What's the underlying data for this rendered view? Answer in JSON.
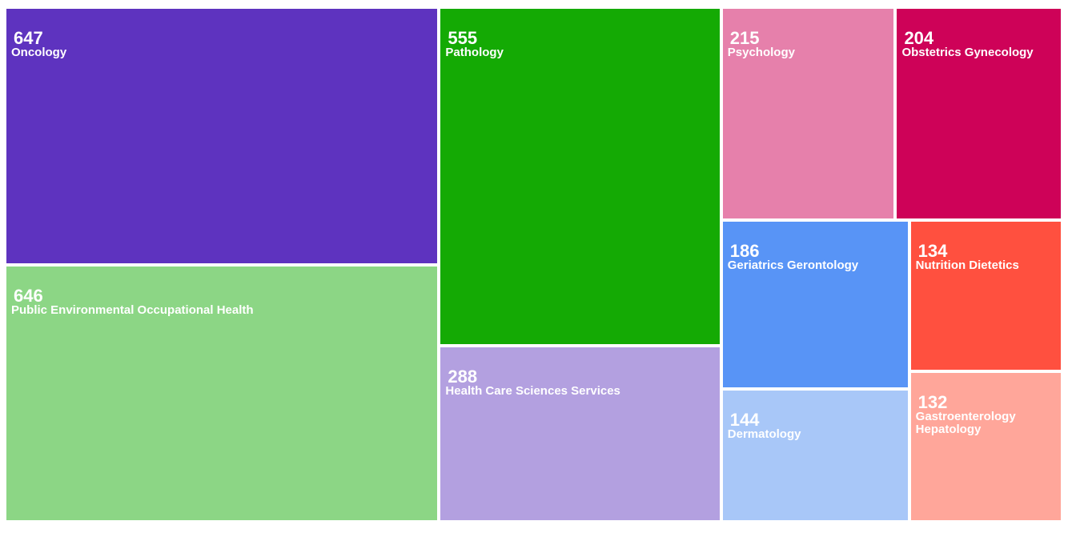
{
  "chart_data": {
    "type": "treemap",
    "title": "",
    "items": [
      {
        "label": "Oncology",
        "value": 647,
        "color": "#5E33BF"
      },
      {
        "label": "Public Environmental Occupational Health",
        "value": 646,
        "color": "#8CD685"
      },
      {
        "label": "Pathology",
        "value": 555,
        "color": "#14AA04"
      },
      {
        "label": "Health Care Sciences Services",
        "value": 288,
        "color": "#B3A0E0"
      },
      {
        "label": "Psychology",
        "value": 215,
        "color": "#E680AB"
      },
      {
        "label": "Obstetrics Gynecology",
        "value": 204,
        "color": "#CE0258"
      },
      {
        "label": "Geriatrics Gerontology",
        "value": 186,
        "color": "#5894F6"
      },
      {
        "label": "Dermatology",
        "value": 144,
        "color": "#A8C7F8"
      },
      {
        "label": "Nutrition Dietetics",
        "value": 134,
        "color": "#FF503F"
      },
      {
        "label": "Gastroenterology Hepatology",
        "value": 132,
        "color": "#FFA69A"
      }
    ]
  }
}
